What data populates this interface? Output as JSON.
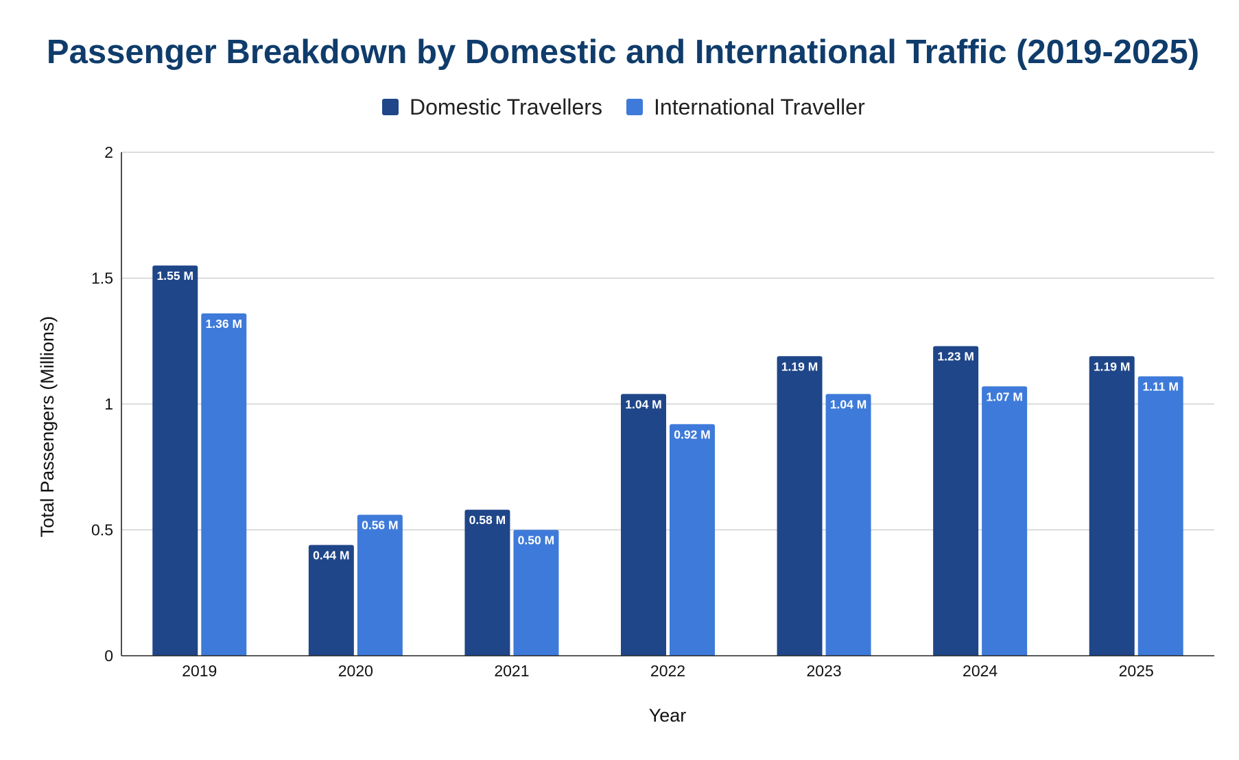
{
  "chart_data": {
    "type": "bar",
    "title": "Passenger Breakdown by Domestic and International Traffic (2019-2025)",
    "xlabel": "Year",
    "ylabel": "Total Passengers (Millions)",
    "ylim": [
      0,
      2
    ],
    "yticks": [
      0,
      0.5,
      1,
      1.5,
      2
    ],
    "ytick_labels": [
      "0",
      "0.5",
      "1",
      "1.5",
      "2"
    ],
    "grid": true,
    "legend": "top-center",
    "categories": [
      "2019",
      "2020",
      "2021",
      "2022",
      "2023",
      "2024",
      "2025"
    ],
    "series": [
      {
        "name": "Domestic Travellers",
        "color": "#1f4688",
        "values": [
          1.55,
          0.44,
          0.58,
          1.04,
          1.19,
          1.23,
          1.19
        ],
        "labels": [
          "1.55 M",
          "0.44 M",
          "0.58 M",
          "1.04 M",
          "1.19 M",
          "1.23 M",
          "1.19 M"
        ]
      },
      {
        "name": "International Traveller",
        "color": "#3e7ad9",
        "values": [
          1.36,
          0.56,
          0.5,
          0.92,
          1.04,
          1.07,
          1.11
        ],
        "labels": [
          "1.36 M",
          "0.56 M",
          "0.50 M",
          "0.92 M",
          "1.04 M",
          "1.07 M",
          "1.11 M"
        ]
      }
    ]
  },
  "colors": {
    "title": "#0f3c6b",
    "gridline": "#c8c8c8",
    "axis": "#222222"
  }
}
